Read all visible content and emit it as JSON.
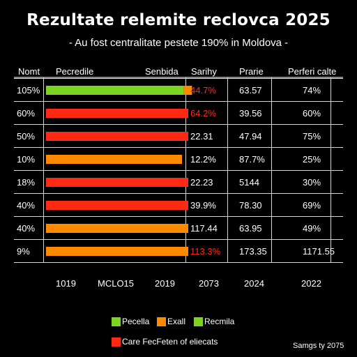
{
  "chart_data": {
    "type": "bar",
    "title": "Rezultate relemite reclovca 2025",
    "subtitle": "- Au fost centralitate pestete 190% in Moldova -",
    "columns": [
      "Nomt",
      "Pecredile",
      "Senbida",
      "Sarihy",
      "Prarie",
      "Perferi calte"
    ],
    "rows": [
      {
        "label": "105%",
        "value": 65.8,
        "color": "#7dd321",
        "cap_color": "#ff8a00",
        "c1": "44.7%",
        "c1_red": true,
        "c2": "63.57",
        "c3": "74%"
      },
      {
        "label": "60%",
        "value": 68,
        "color": "#ff2a14",
        "c1": "64.2%",
        "c1_red": true,
        "c2": "39.56",
        "c3": "60%"
      },
      {
        "label": "50%",
        "value": 68,
        "color": "#ff2a14",
        "c1": "22.31",
        "c1_red": false,
        "c2": "47.94",
        "c3": "75%"
      },
      {
        "label": "10%",
        "value": 65,
        "color": "#ff8a00",
        "c1": "12.2%",
        "c1_red": false,
        "c2": "87.7%",
        "c3": "25%"
      },
      {
        "label": "18%",
        "value": 68,
        "color": "#ff2a14",
        "c1": "22.23",
        "c1_red": false,
        "c2": "5144",
        "c3": "30%"
      },
      {
        "label": "40%",
        "value": 68,
        "color": "#ff2a14",
        "c1": "39.9%",
        "c1_red": false,
        "c2": "78.30",
        "c3": "69%"
      },
      {
        "label": "40%",
        "value": 68,
        "color": "#ff8a00",
        "c1": "117.44",
        "c1_red": false,
        "c2": "63.95",
        "c3": "49%"
      },
      {
        "label": "9%",
        "value": 68,
        "color": "#ff8a00",
        "c1": "113.3%",
        "c1_red": true,
        "c2": "173.35",
        "c3": "1171.55"
      }
    ],
    "x_tick_labels": [
      "1019",
      "MCLO15",
      "2019",
      "2073",
      "2024",
      "2022"
    ],
    "legend": [
      {
        "label": "Pecella",
        "color": "#7dd321"
      },
      {
        "label": "Exall",
        "color": "#ff8a00"
      },
      {
        "label": "Recmila",
        "color": "#7dd321"
      },
      {
        "label": "Care FecFeten of eliecats",
        "color": "#ff2a14"
      }
    ],
    "source": "Samgs ty 2075",
    "grid": true,
    "legend_placement": "bottom"
  }
}
